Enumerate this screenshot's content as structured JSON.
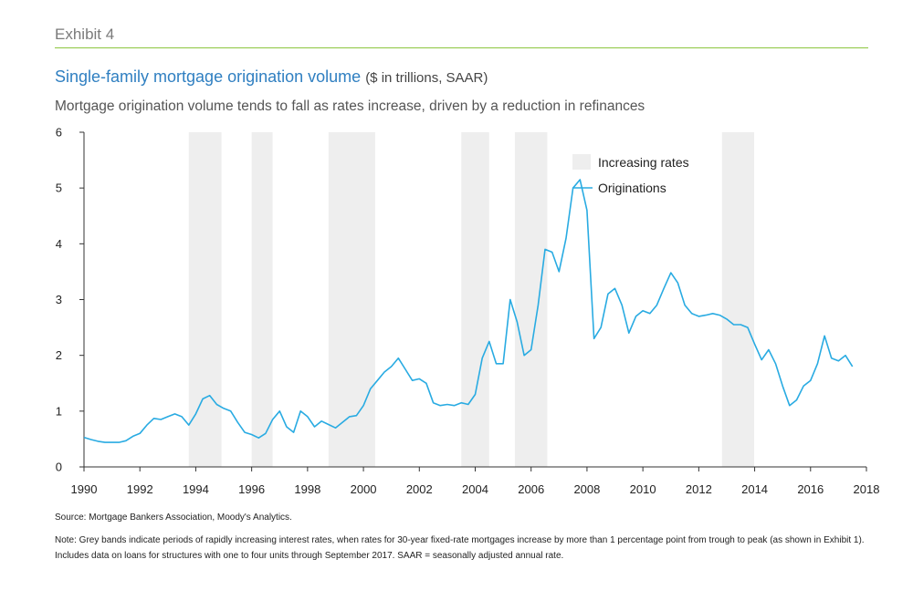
{
  "header": {
    "exhibit": "Exhibit 4",
    "title": "Single-family mortgage origination volume",
    "title_units": "($ in trillions, SAAR)",
    "subtitle": "Mortgage origination volume tends to fall as rates increase, driven by a reduction in refinances"
  },
  "colors": {
    "title": "#2f7fc1",
    "line": "#29abe2",
    "band": "#eeeeee",
    "rule": "#8cc63f"
  },
  "chart_data": {
    "type": "line",
    "xlim": [
      1990,
      2018
    ],
    "ylim": [
      0,
      6
    ],
    "x_ticks": [
      1990,
      1992,
      1994,
      1996,
      1998,
      2000,
      2002,
      2004,
      2006,
      2008,
      2010,
      2012,
      2014,
      2016,
      2018
    ],
    "y_ticks": [
      0,
      1,
      2,
      3,
      4,
      5,
      6
    ],
    "grid": false,
    "legend_position": "top-right",
    "legend": [
      {
        "label": "Increasing rates",
        "kind": "band"
      },
      {
        "label": "Originations",
        "kind": "line"
      }
    ],
    "bands": [
      [
        1993.75,
        1994.92
      ],
      [
        1996.0,
        1996.75
      ],
      [
        1998.75,
        2000.42
      ],
      [
        2003.5,
        2004.5
      ],
      [
        2005.42,
        2006.58
      ],
      [
        2012.83,
        2013.98
      ]
    ],
    "series": [
      {
        "name": "Originations",
        "points": [
          [
            1990.0,
            0.53
          ],
          [
            1990.25,
            0.49
          ],
          [
            1990.5,
            0.46
          ],
          [
            1990.75,
            0.44
          ],
          [
            1991.0,
            0.44
          ],
          [
            1991.25,
            0.44
          ],
          [
            1991.5,
            0.47
          ],
          [
            1991.75,
            0.55
          ],
          [
            1992.0,
            0.6
          ],
          [
            1992.25,
            0.75
          ],
          [
            1992.5,
            0.87
          ],
          [
            1992.75,
            0.85
          ],
          [
            1993.0,
            0.9
          ],
          [
            1993.25,
            0.95
          ],
          [
            1993.5,
            0.9
          ],
          [
            1993.75,
            0.75
          ],
          [
            1994.0,
            0.95
          ],
          [
            1994.25,
            1.22
          ],
          [
            1994.5,
            1.28
          ],
          [
            1994.75,
            1.12
          ],
          [
            1995.0,
            1.05
          ],
          [
            1995.25,
            1.0
          ],
          [
            1995.5,
            0.8
          ],
          [
            1995.75,
            0.62
          ],
          [
            1996.0,
            0.58
          ],
          [
            1996.25,
            0.52
          ],
          [
            1996.5,
            0.6
          ],
          [
            1996.75,
            0.85
          ],
          [
            1997.0,
            1.0
          ],
          [
            1997.25,
            0.72
          ],
          [
            1997.5,
            0.62
          ],
          [
            1997.75,
            1.0
          ],
          [
            1998.0,
            0.9
          ],
          [
            1998.25,
            0.72
          ],
          [
            1998.5,
            0.82
          ],
          [
            1998.75,
            0.76
          ],
          [
            1999.0,
            0.7
          ],
          [
            1999.25,
            0.8
          ],
          [
            1999.5,
            0.9
          ],
          [
            1999.75,
            0.92
          ],
          [
            2000.0,
            1.1
          ],
          [
            2000.25,
            1.4
          ],
          [
            2000.5,
            1.55
          ],
          [
            2000.75,
            1.7
          ],
          [
            2001.0,
            1.8
          ],
          [
            2001.25,
            1.95
          ],
          [
            2001.5,
            1.75
          ],
          [
            2001.75,
            1.55
          ],
          [
            2002.0,
            1.58
          ],
          [
            2002.25,
            1.5
          ],
          [
            2002.5,
            1.15
          ],
          [
            2002.75,
            1.1
          ],
          [
            2003.0,
            1.12
          ],
          [
            2003.25,
            1.1
          ],
          [
            2003.5,
            1.15
          ],
          [
            2003.75,
            1.12
          ],
          [
            2004.0,
            1.3
          ],
          [
            2004.25,
            1.95
          ],
          [
            2004.5,
            2.25
          ],
          [
            2004.75,
            1.85
          ],
          [
            2005.0,
            1.85
          ],
          [
            2005.25,
            3.0
          ],
          [
            2005.5,
            2.6
          ],
          [
            2005.75,
            2.0
          ],
          [
            2006.0,
            2.1
          ],
          [
            2006.25,
            2.9
          ],
          [
            2006.5,
            3.9
          ],
          [
            2006.75,
            3.85
          ],
          [
            2007.0,
            3.5
          ],
          [
            2007.25,
            4.1
          ],
          [
            2007.5,
            5.0
          ],
          [
            2007.75,
            5.15
          ],
          [
            2008.0,
            4.6
          ],
          [
            2008.25,
            2.3
          ],
          [
            2008.5,
            2.5
          ],
          [
            2008.75,
            3.1
          ],
          [
            2009.0,
            3.2
          ],
          [
            2009.25,
            2.9
          ],
          [
            2009.5,
            2.4
          ],
          [
            2009.75,
            2.7
          ],
          [
            2010.0,
            2.8
          ],
          [
            2010.25,
            2.75
          ],
          [
            2010.5,
            2.9
          ],
          [
            2010.75,
            3.2
          ],
          [
            2011.0,
            3.48
          ],
          [
            2011.25,
            3.3
          ],
          [
            2011.5,
            2.9
          ],
          [
            2011.75,
            2.75
          ],
          [
            2012.0,
            2.7
          ],
          [
            2012.25,
            2.72
          ],
          [
            2012.5,
            2.75
          ],
          [
            2012.75,
            2.72
          ],
          [
            2013.0,
            2.65
          ],
          [
            2013.25,
            2.55
          ],
          [
            2013.5,
            2.55
          ],
          [
            2013.75,
            2.5
          ],
          [
            2014.0,
            2.2
          ],
          [
            2014.25,
            1.92
          ],
          [
            2014.5,
            2.1
          ],
          [
            2014.75,
            1.85
          ],
          [
            2015.0,
            1.45
          ],
          [
            2015.25,
            1.1
          ],
          [
            2015.5,
            1.2
          ],
          [
            2015.75,
            1.45
          ],
          [
            2016.0,
            1.55
          ],
          [
            2016.25,
            1.85
          ],
          [
            2016.5,
            2.35
          ],
          [
            2016.75,
            1.95
          ],
          [
            2017.0,
            1.9
          ],
          [
            2017.25,
            2.0
          ],
          [
            2017.5,
            1.8
          ]
        ]
      }
    ]
  },
  "footer": {
    "source": "Source: Mortgage Bankers Association, Moody's Analytics.",
    "note": "Note: Grey bands indicate periods of rapidly increasing interest rates, when rates for 30-year fixed-rate mortgages increase by more than 1 percentage point from trough to peak (as shown in Exhibit 1). Includes data on loans for structures with one to four units through September 2017. SAAR = seasonally adjusted annual rate."
  }
}
